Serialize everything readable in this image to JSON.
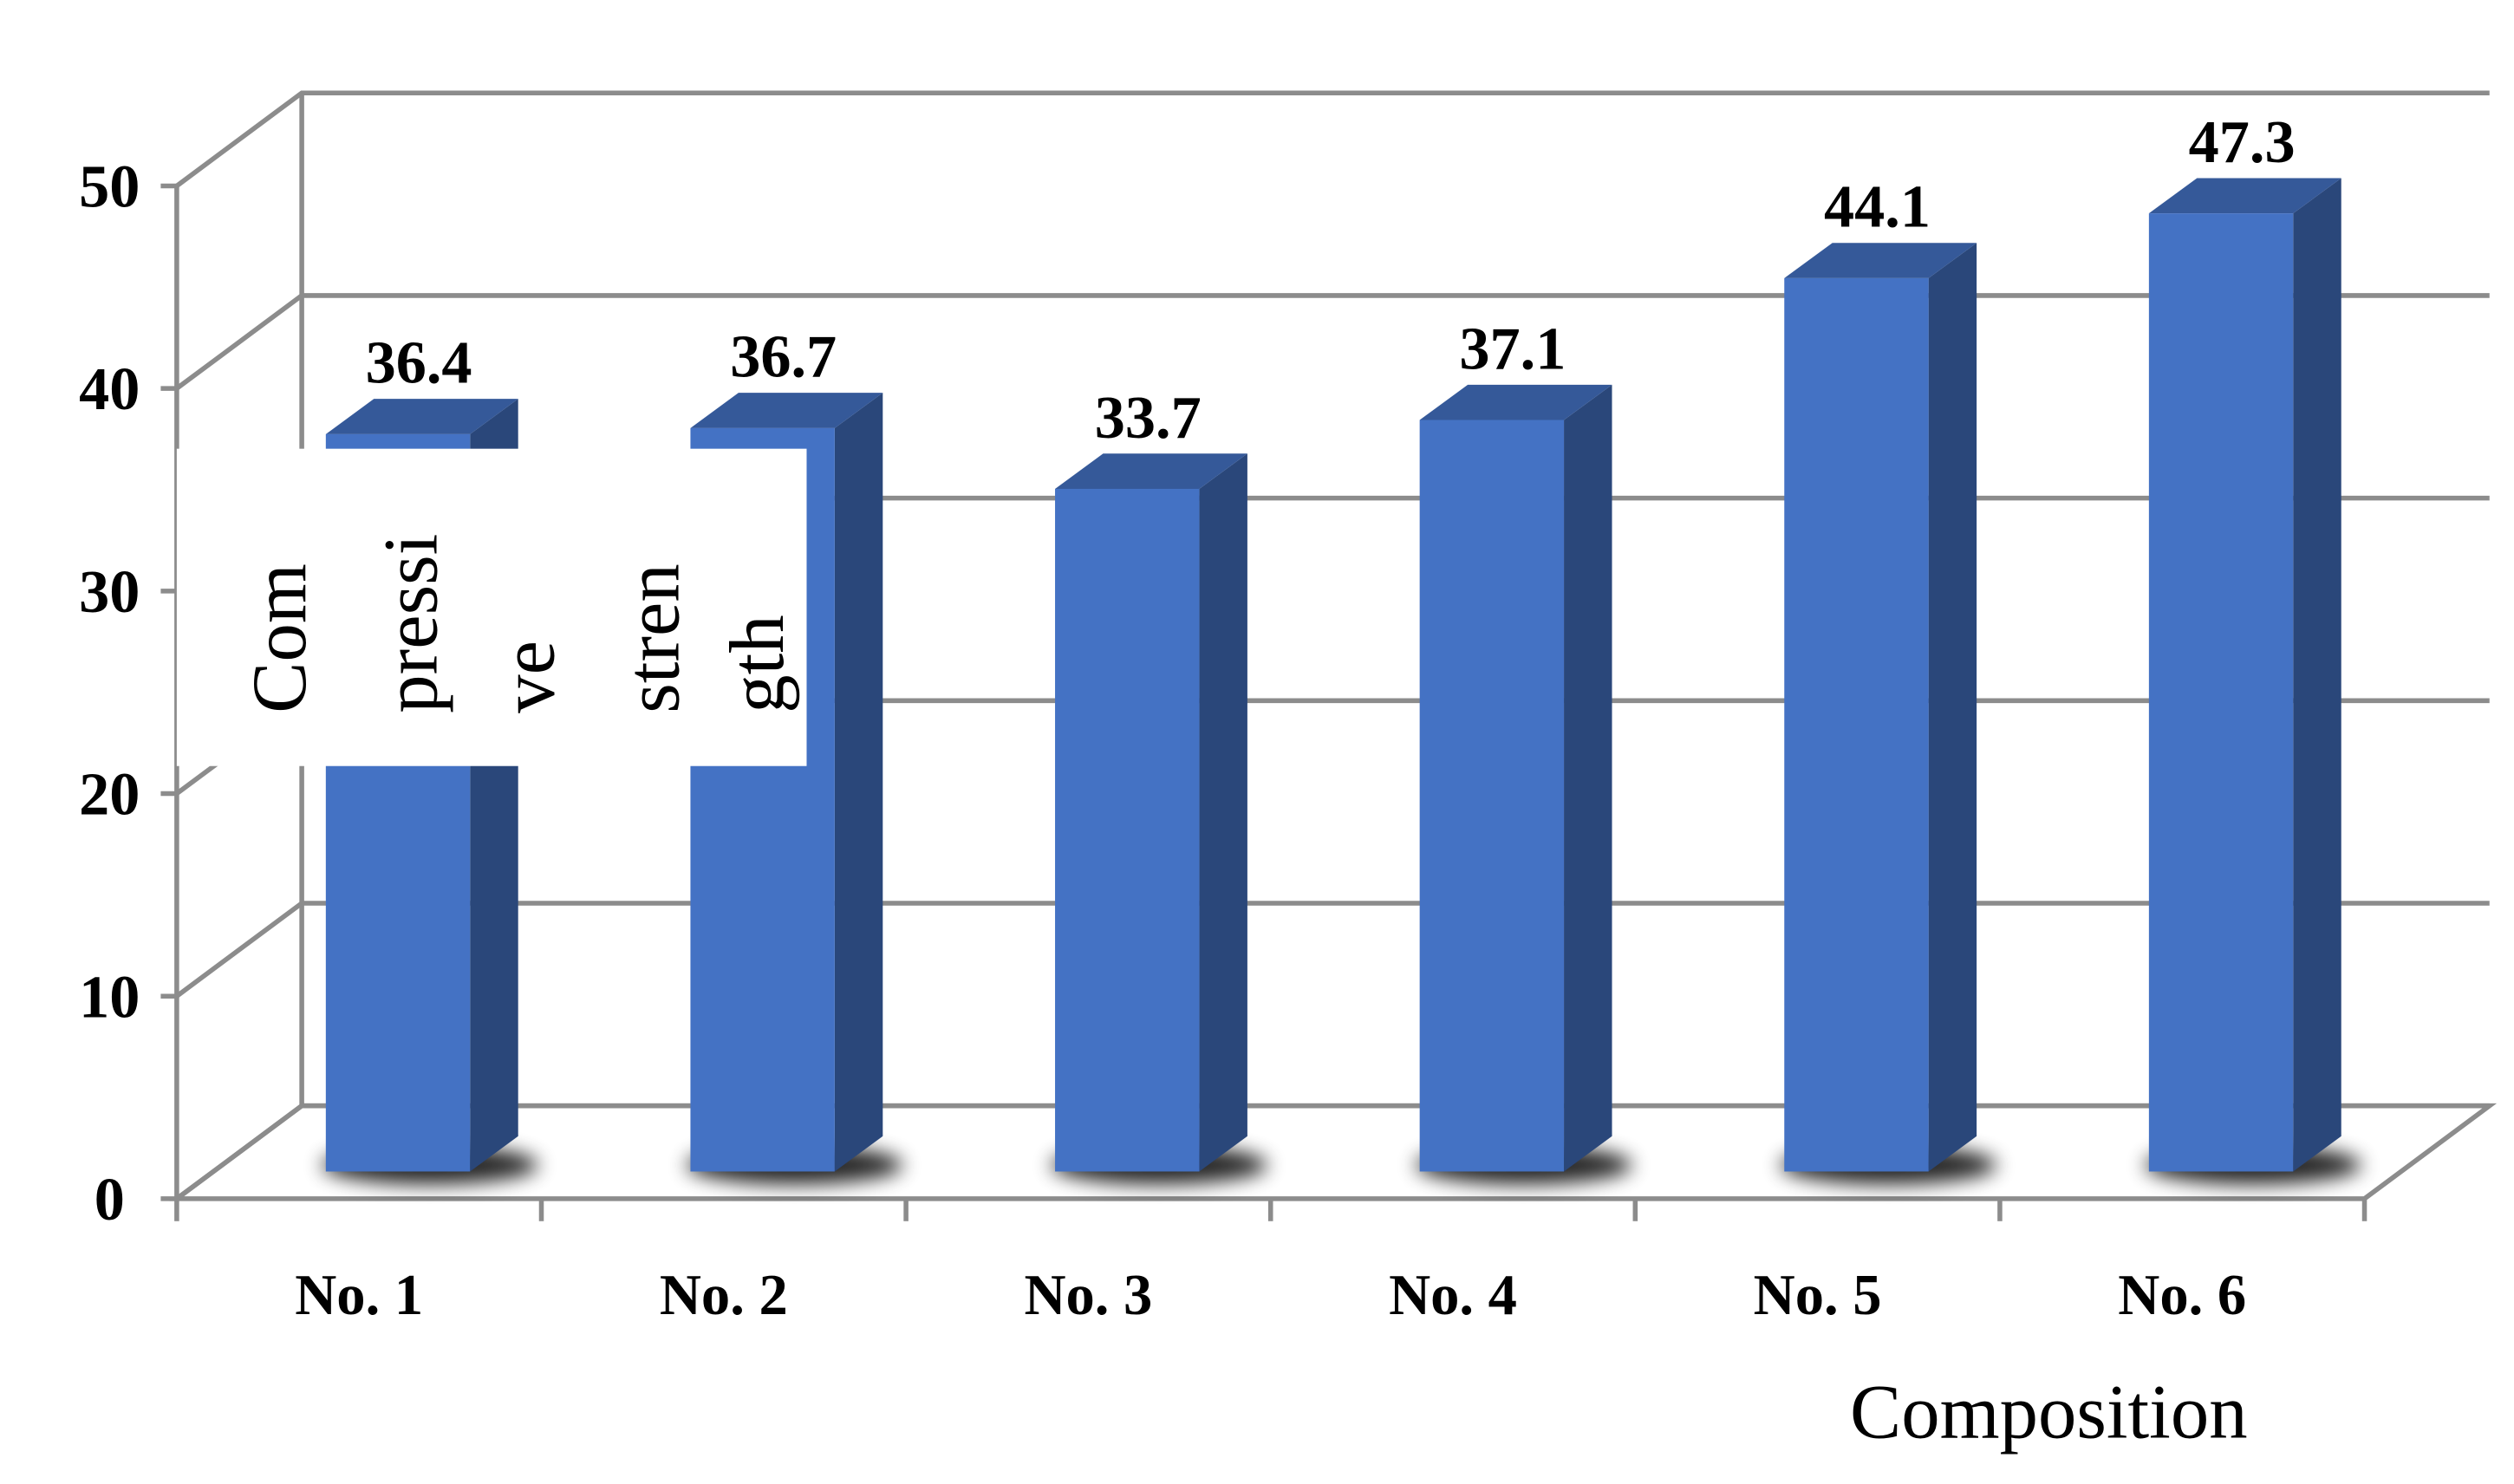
{
  "chart_data": {
    "type": "bar3d",
    "x_label": "Composition",
    "y_label_parts": [
      "Com",
      "pressi",
      "ve",
      "stren",
      "gth"
    ],
    "categories": [
      "No. 1",
      "No. 2",
      "No. 3",
      "No. 4",
      "No. 5",
      "No. 6"
    ],
    "values": [
      36.4,
      36.7,
      33.7,
      37.1,
      44.1,
      47.3
    ],
    "color": "#4472c4",
    "ylim": [
      0,
      50
    ],
    "yticks": [
      0,
      10,
      20,
      30,
      40,
      50
    ],
    "grid": true
  }
}
